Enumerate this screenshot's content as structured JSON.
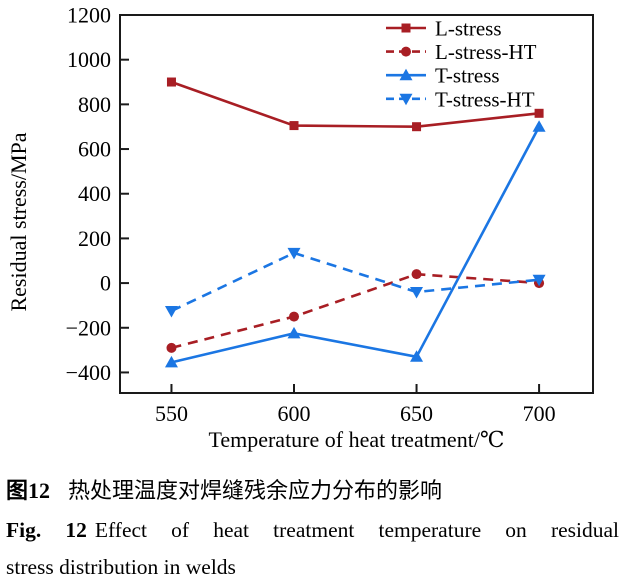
{
  "chart_data": {
    "type": "line",
    "x": [
      550,
      600,
      650,
      700
    ],
    "xticks": [
      550,
      600,
      650,
      700
    ],
    "yticks": [
      -400,
      -200,
      0,
      200,
      400,
      600,
      800,
      1000,
      1200
    ],
    "xlim": [
      529,
      722
    ],
    "ylim": [
      -492,
      1200
    ],
    "xlabel": "Temperature of heat treatment/℃",
    "ylabel": "Residual stress/MPa",
    "grid": false,
    "legend_position": "top-right",
    "frame_color": "#1a1a1a",
    "series": [
      {
        "name": "L-stress",
        "color": "#a81e24",
        "style": "solid",
        "marker": "square",
        "values": [
          900,
          705,
          700,
          760
        ]
      },
      {
        "name": "L-stress-HT",
        "color": "#a81e24",
        "style": "dashed",
        "marker": "circle",
        "values": [
          -290,
          -150,
          40,
          0
        ]
      },
      {
        "name": "T-stress",
        "color": "#1b76e3",
        "style": "solid",
        "marker": "triangle-up",
        "values": [
          -355,
          -225,
          -330,
          700
        ]
      },
      {
        "name": "T-stress-HT",
        "color": "#1b76e3",
        "style": "dashed",
        "marker": "triangle-down",
        "values": [
          -125,
          135,
          -40,
          15
        ]
      }
    ]
  },
  "caption": {
    "zh_label": "图12",
    "zh_text": "热处理温度对焊缝残余应力分布的影响",
    "en_label": "Fig. 12",
    "en_line1": "Effect of heat treatment temperature on residual",
    "en_line2": "stress distribution in welds"
  }
}
